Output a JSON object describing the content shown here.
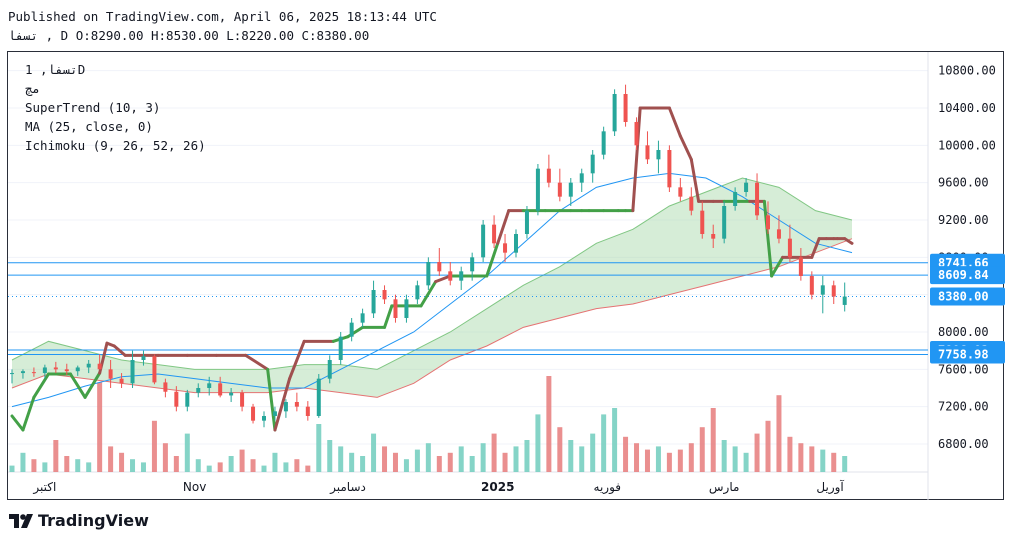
{
  "header": {
    "published": "Published on TradingView.com, April 06, 2025 18:13:44 UTC",
    "ohlc": "تسفا , D O:8290.00 H:8530.00 L:8220.00 C:8380.00"
  },
  "legend": {
    "symbol": "تسفا, 1D",
    "sub": "مچ",
    "supertrend": "SuperTrend (10, 3)",
    "ma": "MA (25, close, 0)",
    "ichimoku": "Ichimoku (9, 26, 52, 26)"
  },
  "branding": {
    "logo_text": "TradingView"
  },
  "colors": {
    "up": "#26a69a",
    "down": "#ef5350",
    "up_fill": "#70ccbd",
    "down_fill": "#e67b7b",
    "supertrend_up": "#43a047",
    "supertrend_down": "#a0504f",
    "ma": "#2196f3",
    "cloud_bull": "#a5d6a7",
    "cloud_bear": "#f7c5c5",
    "hline": "#2196f3",
    "last_price": "#2196f3"
  },
  "chart_data": {
    "type": "candlestick",
    "y_axis": {
      "min": 6500,
      "max": 11000,
      "ticks": [
        6800,
        7200,
        7600,
        8000,
        8400,
        8800,
        9200,
        9600,
        10000,
        10400,
        10800
      ]
    },
    "y_tick_labels": [
      "6800.00",
      "7200.00",
      "7600.00",
      "8000.00",
      "8400.00",
      "8800.00",
      "9200.00",
      "9600.00",
      "10000.00",
      "10400.00",
      "10800.00"
    ],
    "x_labels": [
      "اکتبر",
      "Nov",
      "دسامبر",
      "2025",
      "فوریه",
      "مارس",
      "آوریل"
    ],
    "x_label_positions": [
      9,
      50,
      92,
      133,
      163,
      195,
      224
    ],
    "bold_x_label": "2025",
    "horizontal_levels": [
      8741.66,
      8609.84,
      7806.92,
      7758.98
    ],
    "price_labels": [
      {
        "value": 8741.66,
        "text": "8741.66"
      },
      {
        "value": 8609.84,
        "text": "8609.84"
      },
      {
        "value": 8380.0,
        "text": "8380.00"
      },
      {
        "value": 7806.92,
        "text": "7806.92"
      },
      {
        "value": 7758.98,
        "text": "7758.98"
      }
    ],
    "last_close": 8380.0,
    "bars": 230,
    "candles": [
      [
        0,
        7550,
        7600,
        7450,
        7560
      ],
      [
        3,
        7560,
        7600,
        7500,
        7580
      ],
      [
        6,
        7570,
        7620,
        7520,
        7560
      ],
      [
        9,
        7560,
        7650,
        7500,
        7620
      ],
      [
        12,
        7620,
        7680,
        7560,
        7600
      ],
      [
        15,
        7600,
        7660,
        7540,
        7580
      ],
      [
        18,
        7580,
        7640,
        7530,
        7620
      ],
      [
        21,
        7620,
        7700,
        7560,
        7660
      ],
      [
        24,
        7660,
        7760,
        7620,
        7600
      ],
      [
        27,
        7600,
        7700,
        7400,
        7500
      ],
      [
        30,
        7500,
        7560,
        7400,
        7450
      ],
      [
        33,
        7450,
        7800,
        7400,
        7700
      ],
      [
        36,
        7700,
        7800,
        7640,
        7740
      ],
      [
        39,
        7740,
        7760,
        7440,
        7460
      ],
      [
        42,
        7460,
        7500,
        7300,
        7360
      ],
      [
        45,
        7360,
        7420,
        7150,
        7200
      ],
      [
        48,
        7200,
        7380,
        7150,
        7350
      ],
      [
        51,
        7350,
        7450,
        7300,
        7400
      ],
      [
        54,
        7400,
        7520,
        7320,
        7450
      ],
      [
        57,
        7450,
        7520,
        7300,
        7320
      ],
      [
        60,
        7320,
        7400,
        7250,
        7350
      ],
      [
        63,
        7350,
        7380,
        7150,
        7200
      ],
      [
        66,
        7200,
        7230,
        7020,
        7050
      ],
      [
        69,
        7050,
        7150,
        6980,
        7100
      ],
      [
        72,
        7100,
        7200,
        7050,
        7150
      ],
      [
        75,
        7150,
        7280,
        7080,
        7250
      ],
      [
        78,
        7250,
        7350,
        7150,
        7200
      ],
      [
        81,
        7200,
        7260,
        7050,
        7100
      ],
      [
        84,
        7100,
        7550,
        7080,
        7500
      ],
      [
        87,
        7500,
        7750,
        7450,
        7700
      ],
      [
        90,
        7700,
        8000,
        7650,
        7950
      ],
      [
        93,
        7950,
        8150,
        7900,
        8100
      ],
      [
        96,
        8100,
        8250,
        8050,
        8200
      ],
      [
        99,
        8200,
        8550,
        8150,
        8450
      ],
      [
        102,
        8450,
        8500,
        8300,
        8350
      ],
      [
        105,
        8350,
        8400,
        8100,
        8150
      ],
      [
        108,
        8150,
        8400,
        8100,
        8350
      ],
      [
        111,
        8350,
        8550,
        8300,
        8500
      ],
      [
        114,
        8500,
        8800,
        8450,
        8750
      ],
      [
        117,
        8750,
        8900,
        8600,
        8650
      ],
      [
        120,
        8650,
        8750,
        8500,
        8550
      ],
      [
        123,
        8550,
        8700,
        8450,
        8650
      ],
      [
        126,
        8650,
        8850,
        8550,
        8800
      ],
      [
        129,
        8800,
        9200,
        8750,
        9150
      ],
      [
        132,
        9150,
        9250,
        8900,
        8950
      ],
      [
        135,
        8950,
        9050,
        8750,
        8850
      ],
      [
        138,
        8850,
        9100,
        8800,
        9050
      ],
      [
        141,
        9050,
        9350,
        9000,
        9300
      ],
      [
        144,
        9300,
        9800,
        9250,
        9750
      ],
      [
        147,
        9750,
        9900,
        9550,
        9600
      ],
      [
        150,
        9600,
        9750,
        9400,
        9450
      ],
      [
        153,
        9450,
        9650,
        9350,
        9600
      ],
      [
        156,
        9600,
        9750,
        9500,
        9700
      ],
      [
        159,
        9700,
        9950,
        9600,
        9900
      ],
      [
        162,
        9900,
        10200,
        9850,
        10150
      ],
      [
        165,
        10150,
        10600,
        10100,
        10550
      ],
      [
        168,
        10550,
        10650,
        10200,
        10250
      ],
      [
        171,
        10250,
        10300,
        9950,
        10000
      ],
      [
        174,
        10000,
        10150,
        9800,
        9850
      ],
      [
        177,
        9850,
        10050,
        9700,
        9950
      ],
      [
        180,
        9950,
        10000,
        9500,
        9550
      ],
      [
        183,
        9550,
        9650,
        9400,
        9450
      ],
      [
        186,
        9450,
        9550,
        9250,
        9300
      ],
      [
        189,
        9300,
        9400,
        9000,
        9050
      ],
      [
        192,
        9050,
        9150,
        8900,
        9000
      ],
      [
        195,
        9000,
        9400,
        8950,
        9350
      ],
      [
        198,
        9350,
        9550,
        9300,
        9500
      ],
      [
        201,
        9500,
        9650,
        9450,
        9600
      ],
      [
        204,
        9600,
        9700,
        9200,
        9250
      ],
      [
        207,
        9250,
        9400,
        9050,
        9100
      ],
      [
        210,
        9100,
        9250,
        8950,
        9000
      ],
      [
        213,
        9000,
        9150,
        8750,
        8800
      ],
      [
        216,
        8800,
        8900,
        8550,
        8600
      ],
      [
        219,
        8600,
        8650,
        8350,
        8400
      ],
      [
        222,
        8400,
        8600,
        8200,
        8500
      ],
      [
        225,
        8500,
        8550,
        8300,
        8380
      ],
      [
        228,
        8290,
        8530,
        8220,
        8380
      ]
    ],
    "supertrend": [
      [
        0,
        7100
      ],
      [
        3,
        6950
      ],
      [
        6,
        7300
      ],
      [
        10,
        7550
      ],
      [
        16,
        7550
      ],
      [
        20,
        7300
      ],
      [
        24,
        7560
      ],
      [
        26,
        7880
      ],
      [
        28,
        7850
      ],
      [
        31,
        7750
      ],
      [
        40,
        7750
      ],
      [
        48,
        7750
      ],
      [
        56,
        7750
      ],
      [
        64,
        7750
      ],
      [
        70,
        7600
      ],
      [
        72,
        6950
      ],
      [
        76,
        7500
      ],
      [
        80,
        7900
      ],
      [
        88,
        7900
      ],
      [
        92,
        7950
      ],
      [
        96,
        8050
      ],
      [
        102,
        8050
      ],
      [
        104,
        8280
      ],
      [
        108,
        8280
      ],
      [
        112,
        8280
      ],
      [
        116,
        8540
      ],
      [
        120,
        8600
      ],
      [
        124,
        8600
      ],
      [
        128,
        8600
      ],
      [
        130,
        8600
      ],
      [
        133,
        8950
      ],
      [
        136,
        9300
      ],
      [
        140,
        9300
      ],
      [
        146,
        9300
      ],
      [
        150,
        9300
      ],
      [
        153,
        9300
      ],
      [
        156,
        9300
      ],
      [
        158,
        9300
      ],
      [
        162,
        9300
      ],
      [
        166,
        9300
      ],
      [
        168,
        9300
      ],
      [
        170,
        9300
      ],
      [
        172,
        10400
      ],
      [
        177,
        10400
      ],
      [
        180,
        10400
      ],
      [
        183,
        10100
      ],
      [
        186,
        9850
      ],
      [
        188,
        9400
      ],
      [
        192,
        9400
      ],
      [
        195,
        9400
      ],
      [
        199,
        9400
      ],
      [
        202,
        9400
      ],
      [
        204,
        9400
      ],
      [
        206,
        9400
      ],
      [
        208,
        8600
      ],
      [
        211,
        8800
      ],
      [
        216,
        8800
      ],
      [
        219,
        8800
      ],
      [
        221,
        9000
      ],
      [
        223,
        9000
      ],
      [
        225,
        9000
      ],
      [
        226,
        9000
      ],
      [
        228,
        9000
      ],
      [
        230,
        8950
      ]
    ],
    "ma": [
      [
        0,
        7200
      ],
      [
        10,
        7300
      ],
      [
        20,
        7420
      ],
      [
        30,
        7520
      ],
      [
        40,
        7550
      ],
      [
        50,
        7500
      ],
      [
        60,
        7450
      ],
      [
        70,
        7400
      ],
      [
        80,
        7400
      ],
      [
        90,
        7600
      ],
      [
        100,
        7800
      ],
      [
        110,
        8000
      ],
      [
        120,
        8300
      ],
      [
        130,
        8600
      ],
      [
        140,
        8950
      ],
      [
        150,
        9300
      ],
      [
        160,
        9550
      ],
      [
        170,
        9650
      ],
      [
        180,
        9700
      ],
      [
        190,
        9650
      ],
      [
        200,
        9450
      ],
      [
        210,
        9200
      ],
      [
        220,
        8950
      ],
      [
        230,
        8850
      ]
    ],
    "cloud": {
      "bands": [
        [
          0,
          7700,
          7400
        ],
        [
          10,
          7900,
          7550
        ],
        [
          20,
          7800,
          7500
        ],
        [
          30,
          7700,
          7450
        ],
        [
          40,
          7650,
          7400
        ],
        [
          50,
          7600,
          7350
        ],
        [
          60,
          7600,
          7350
        ],
        [
          70,
          7600,
          7350
        ],
        [
          80,
          7650,
          7400
        ],
        [
          90,
          7650,
          7350
        ],
        [
          100,
          7600,
          7300
        ],
        [
          110,
          7800,
          7450
        ],
        [
          120,
          8000,
          7700
        ],
        [
          130,
          8250,
          7850
        ],
        [
          140,
          8500,
          8050
        ],
        [
          150,
          8700,
          8150
        ],
        [
          160,
          8950,
          8250
        ],
        [
          170,
          9100,
          8300
        ],
        [
          180,
          9350,
          8400
        ],
        [
          190,
          9500,
          8500
        ],
        [
          200,
          9650,
          8600
        ],
        [
          210,
          9550,
          8700
        ],
        [
          220,
          9300,
          8850
        ],
        [
          230,
          9200,
          9000
        ]
      ]
    },
    "volume": [
      [
        0,
        2
      ],
      [
        3,
        6
      ],
      [
        6,
        4
      ],
      [
        9,
        3
      ],
      [
        12,
        10
      ],
      [
        15,
        5
      ],
      [
        18,
        4
      ],
      [
        21,
        3
      ],
      [
        24,
        28
      ],
      [
        27,
        8
      ],
      [
        30,
        6
      ],
      [
        33,
        4
      ],
      [
        36,
        3
      ],
      [
        39,
        16
      ],
      [
        42,
        9
      ],
      [
        45,
        5
      ],
      [
        48,
        12
      ],
      [
        51,
        4
      ],
      [
        54,
        2
      ],
      [
        57,
        3
      ],
      [
        60,
        5
      ],
      [
        63,
        7
      ],
      [
        66,
        4
      ],
      [
        69,
        2
      ],
      [
        72,
        6
      ],
      [
        75,
        3
      ],
      [
        78,
        4
      ],
      [
        81,
        2
      ],
      [
        84,
        15
      ],
      [
        87,
        10
      ],
      [
        90,
        8
      ],
      [
        93,
        6
      ],
      [
        96,
        5
      ],
      [
        99,
        12
      ],
      [
        102,
        8
      ],
      [
        105,
        6
      ],
      [
        108,
        4
      ],
      [
        111,
        7
      ],
      [
        114,
        9
      ],
      [
        117,
        5
      ],
      [
        120,
        6
      ],
      [
        123,
        8
      ],
      [
        126,
        5
      ],
      [
        129,
        9
      ],
      [
        132,
        12
      ],
      [
        135,
        6
      ],
      [
        138,
        8
      ],
      [
        141,
        10
      ],
      [
        144,
        18
      ],
      [
        147,
        30
      ],
      [
        150,
        14
      ],
      [
        153,
        10
      ],
      [
        156,
        8
      ],
      [
        159,
        12
      ],
      [
        162,
        18
      ],
      [
        165,
        20
      ],
      [
        168,
        11
      ],
      [
        171,
        9
      ],
      [
        174,
        7
      ],
      [
        177,
        8
      ],
      [
        180,
        6
      ],
      [
        183,
        7
      ],
      [
        186,
        9
      ],
      [
        189,
        14
      ],
      [
        192,
        20
      ],
      [
        195,
        10
      ],
      [
        198,
        8
      ],
      [
        201,
        6
      ],
      [
        204,
        12
      ],
      [
        207,
        16
      ],
      [
        210,
        24
      ],
      [
        213,
        11
      ],
      [
        216,
        9
      ],
      [
        219,
        8
      ],
      [
        222,
        7
      ],
      [
        225,
        6
      ],
      [
        228,
        5
      ]
    ]
  }
}
